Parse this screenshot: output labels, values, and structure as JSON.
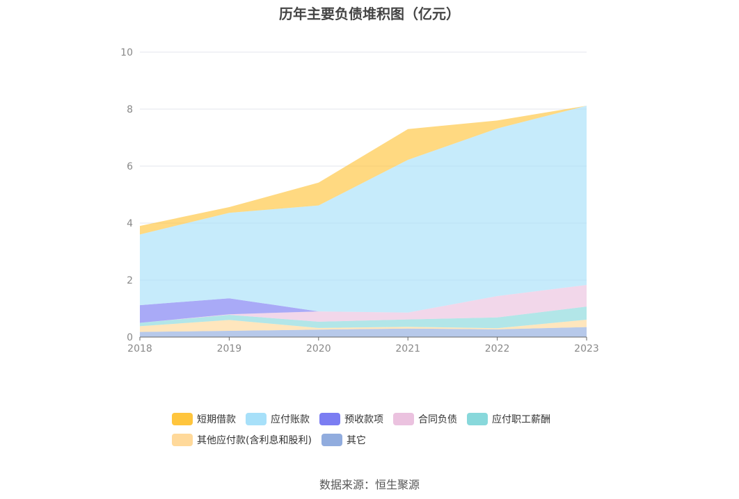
{
  "chart_data": {
    "type": "area",
    "stacked": true,
    "title": "历年主要负债堆积图（亿元）",
    "x": [
      "2018",
      "2019",
      "2020",
      "2021",
      "2022",
      "2023"
    ],
    "yticks": [
      "0",
      "2",
      "4",
      "6",
      "8",
      "10"
    ],
    "ylim": [
      0,
      10
    ],
    "grid": true,
    "legend_position": "bottom",
    "series": [
      {
        "name": "其它",
        "color": "#91ACDE",
        "values": [
          0.18,
          0.22,
          0.26,
          0.3,
          0.27,
          0.35
        ]
      },
      {
        "name": "其他应付款(含利息和股利)",
        "color": "#FFD99A",
        "values": [
          0.2,
          0.38,
          0.06,
          0.06,
          0.04,
          0.26
        ]
      },
      {
        "name": "应付职工薪酬",
        "color": "#88D8DB",
        "values": [
          0.12,
          0.18,
          0.22,
          0.26,
          0.38,
          0.46
        ]
      },
      {
        "name": "合同负债",
        "color": "#EBC2DF",
        "values": [
          0.0,
          0.02,
          0.36,
          0.24,
          0.75,
          0.76
        ]
      },
      {
        "name": "预收款项",
        "color": "#7B7DF2",
        "values": [
          0.62,
          0.56,
          0.0,
          0.0,
          0.0,
          0.0
        ]
      },
      {
        "name": "应付账款",
        "color": "#A7E0F9",
        "values": [
          2.48,
          3.0,
          3.72,
          5.36,
          5.88,
          6.29
        ]
      },
      {
        "name": "短期借款",
        "color": "#FFC53D",
        "values": [
          0.3,
          0.2,
          0.8,
          1.08,
          0.28,
          0.0
        ]
      }
    ],
    "legend_order": [
      "短期借款",
      "应付账款",
      "预收款项",
      "合同负债",
      "应付职工薪酬",
      "其他应付款(含利息和股利)",
      "其它"
    ],
    "source": "数据来源：恒生聚源"
  }
}
